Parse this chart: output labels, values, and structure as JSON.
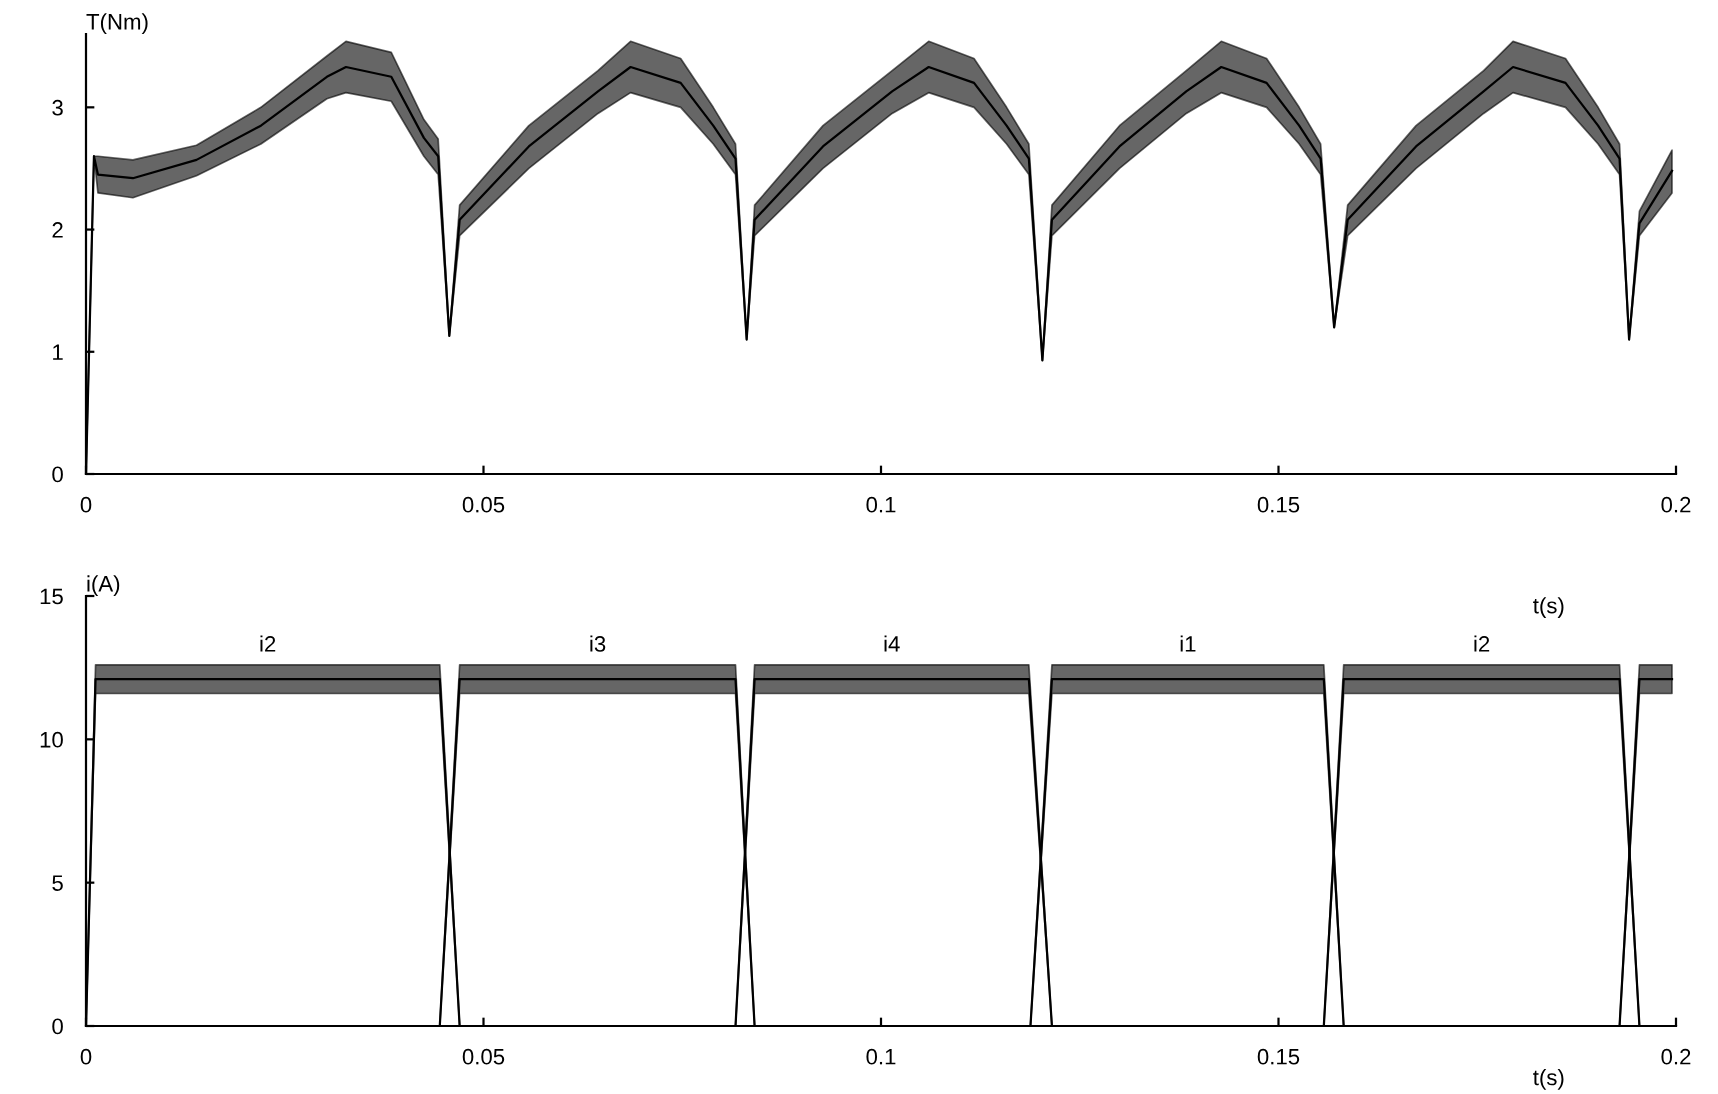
{
  "chart_data": [
    {
      "type": "line",
      "ylabel": "T(Nm)",
      "xlabel": "t(s)",
      "grid": false,
      "xlim": [
        0,
        0.2
      ],
      "ylim": [
        0,
        3.6
      ],
      "xticks": [
        0,
        0.05,
        0.1,
        0.15,
        0.2
      ],
      "yticks": [
        0,
        1,
        2,
        3
      ],
      "series": [
        {
          "color": "#000000",
          "x": [
            0,
            0.001,
            0.0015,
            0.0059,
            0.0139,
            0.022,
            0.0303,
            0.0327,
            0.0384,
            0.0425,
            0.0443,
            0.0457,
            0.047,
            0.0557,
            0.0644,
            0.0685,
            0.0748,
            0.0789,
            0.0817,
            0.0831,
            0.0841,
            0.0927,
            0.1014,
            0.106,
            0.1117,
            0.1158,
            0.1186,
            0.1203,
            0.1215,
            0.13,
            0.1384,
            0.1428,
            0.1485,
            0.1526,
            0.1553,
            0.157,
            0.1587,
            0.1673,
            0.1758,
            0.1795,
            0.1861,
            0.1902,
            0.1929,
            0.1941,
            0.1954,
            0.1995
          ],
          "values": [
            0,
            2.6,
            2.45,
            2.42,
            2.57,
            2.85,
            3.25,
            3.33,
            3.25,
            2.75,
            2.6,
            1.13,
            2.08,
            2.68,
            3.13,
            3.33,
            3.2,
            2.85,
            2.58,
            1.1,
            2.08,
            2.68,
            3.13,
            3.33,
            3.2,
            2.85,
            2.58,
            0.93,
            2.08,
            2.68,
            3.13,
            3.33,
            3.2,
            2.85,
            2.58,
            1.2,
            2.08,
            2.68,
            3.13,
            3.33,
            3.2,
            2.85,
            2.58,
            1.1,
            2.05,
            2.48
          ],
          "lower": [
            0,
            2.6,
            2.3,
            2.26,
            2.44,
            2.7,
            3.07,
            3.12,
            3.05,
            2.6,
            2.45,
            1.13,
            1.95,
            2.5,
            2.95,
            3.12,
            3.0,
            2.7,
            2.45,
            1.1,
            1.95,
            2.5,
            2.95,
            3.12,
            3.0,
            2.7,
            2.45,
            0.93,
            1.95,
            2.5,
            2.95,
            3.12,
            3.0,
            2.7,
            2.45,
            1.2,
            1.95,
            2.5,
            2.95,
            3.12,
            3.0,
            2.7,
            2.45,
            1.1,
            1.95,
            2.3
          ],
          "upper": [
            0,
            2.6,
            2.6,
            2.57,
            2.69,
            3.0,
            3.42,
            3.54,
            3.45,
            2.9,
            2.74,
            1.13,
            2.2,
            2.85,
            3.3,
            3.54,
            3.4,
            3.0,
            2.7,
            1.1,
            2.2,
            2.85,
            3.3,
            3.54,
            3.4,
            3.0,
            2.7,
            0.93,
            2.2,
            2.85,
            3.3,
            3.54,
            3.4,
            3.0,
            2.7,
            1.2,
            2.2,
            2.85,
            3.3,
            3.54,
            3.4,
            3.0,
            2.7,
            1.1,
            2.15,
            2.65
          ]
        }
      ]
    },
    {
      "type": "line",
      "ylabel": "i(A)",
      "xlabel": "t(s)",
      "grid": false,
      "xlim": [
        0,
        0.2
      ],
      "ylim": [
        0,
        15
      ],
      "xticks": [
        0,
        0.05,
        0.1,
        0.15,
        0.2
      ],
      "yticks": [
        0,
        5,
        10,
        15
      ],
      "series": [
        {
          "name": "i2",
          "color": "#000000",
          "x": [
            0,
            0.0012,
            0.0445,
            0.047
          ],
          "values": [
            0,
            12.1,
            12.1,
            0
          ],
          "lower": [
            0,
            11.6,
            11.6,
            0
          ],
          "upper": [
            0,
            12.6,
            12.6,
            0
          ]
        },
        {
          "name": "i3",
          "color": "#000000",
          "x": [
            0.0445,
            0.047,
            0.0817,
            0.0841
          ],
          "values": [
            0,
            12.1,
            12.1,
            0
          ],
          "lower": [
            0,
            11.6,
            11.6,
            0
          ],
          "upper": [
            0,
            12.6,
            12.6,
            0
          ]
        },
        {
          "name": "i4",
          "color": "#000000",
          "x": [
            0.0817,
            0.0841,
            0.1186,
            0.1215
          ],
          "values": [
            0,
            12.1,
            12.1,
            0
          ],
          "lower": [
            0,
            11.6,
            11.6,
            0
          ],
          "upper": [
            0,
            12.6,
            12.6,
            0
          ]
        },
        {
          "name": "i1",
          "color": "#000000",
          "x": [
            0.1188,
            0.1215,
            0.1557,
            0.1582
          ],
          "values": [
            0,
            12.1,
            12.1,
            0
          ],
          "lower": [
            0,
            11.6,
            11.6,
            0
          ],
          "upper": [
            0,
            12.6,
            12.6,
            0
          ]
        },
        {
          "name": "i2",
          "color": "#000000",
          "x": [
            0.1557,
            0.1582,
            0.1929,
            0.1954
          ],
          "values": [
            0,
            12.1,
            12.1,
            0
          ],
          "lower": [
            0,
            11.6,
            11.6,
            0
          ],
          "upper": [
            0,
            12.6,
            12.6,
            0
          ]
        },
        {
          "color": "#000000",
          "x": [
            0.1929,
            0.1954,
            0.1995
          ],
          "values": [
            0,
            12.1,
            12.1
          ],
          "lower": [
            0,
            11.6,
            11.6
          ],
          "upper": [
            0,
            12.6,
            12.6
          ]
        }
      ]
    }
  ]
}
